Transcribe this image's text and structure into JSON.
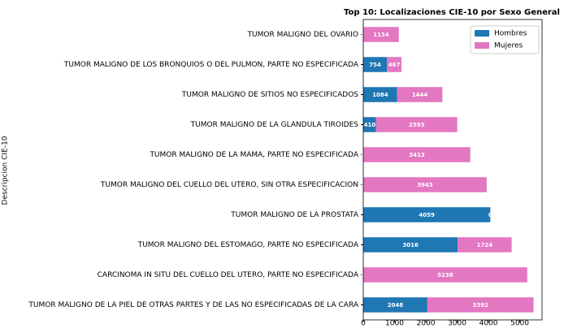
{
  "chart_data": {
    "type": "stacked_barh",
    "title": "Top 10: Localizaciones CIE-10 por Sexo General",
    "y_label": "Descripcion CIE-10",
    "categories": [
      "TUMOR MALIGNO DEL OVARIO",
      "TUMOR MALIGNO DE LOS BRONQUIOS O DEL PULMON, PARTE NO ESPECIFICADA",
      "TUMOR MALIGNO DE SITIOS NO ESPECIFICADOS",
      "TUMOR MALIGNO DE LA GLANDULA TIROIDES",
      "TUMOR MALIGNO DE LA MAMA, PARTE NO ESPECIFICADA",
      "TUMOR MALIGNO DEL CUELLO DEL UTERO, SIN OTRA ESPECIFICACION",
      "TUMOR MALIGNO DE LA PROSTATA",
      "TUMOR MALIGNO DEL ESTOMAGO, PARTE NO ESPECIFICADA",
      "CARCINOMA IN SITU DEL CUELLO DEL UTERO, PARTE NO ESPECIFICADA",
      "TUMOR MALIGNO DE LA PIEL DE OTRAS PARTES Y DE LAS NO ESPECIFICADAS DE LA CARA"
    ],
    "series": [
      {
        "name": "Hombres",
        "color": "#1f77b4",
        "values": [
          0,
          754,
          1084,
          410,
          6,
          0,
          4059,
          3016,
          0,
          2048
        ]
      },
      {
        "name": "Mujeres",
        "color": "#e377c2",
        "values": [
          1134,
          467,
          1444,
          2593,
          3413,
          3943,
          0,
          1724,
          5238,
          3392
        ]
      }
    ],
    "xlim": [
      0,
      5712
    ],
    "xticks": [
      0,
      1000,
      2000,
      3000,
      4000,
      5000
    ],
    "legend": "upper right"
  }
}
